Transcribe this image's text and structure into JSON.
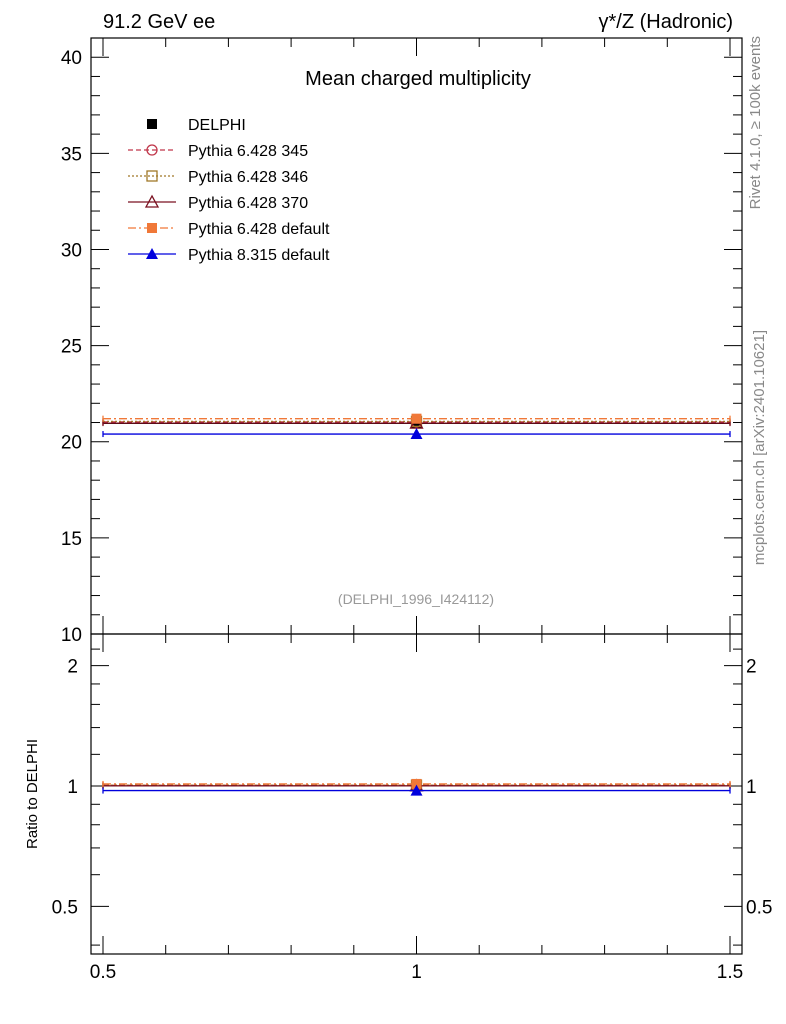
{
  "header": {
    "left": "91.2 GeV ee",
    "right": "γ*/Z (Hadronic)"
  },
  "side_text": {
    "rivet": "Rivet 4.1.0, ≥ 100k events",
    "mcplots": "mcplots.cern.ch [arXiv:2401.10621]"
  },
  "chart_data": {
    "type": "scatter",
    "title": "Mean charged multiplicity",
    "analysis_label": "(DELPHI_1996_I424112)",
    "xlim": [
      0.5,
      1.5
    ],
    "x_ticks": [
      "0.5",
      "1",
      "1.5"
    ],
    "main": {
      "ylim": [
        10,
        41
      ],
      "y_ticks": [
        "10",
        "15",
        "20",
        "25",
        "30",
        "35",
        "40"
      ]
    },
    "ratio": {
      "ylabel": "Ratio to DELPHI",
      "ylim": [
        0.38,
        2.4
      ],
      "y_ticks": [
        "0.5",
        "1",
        "2"
      ]
    },
    "series": [
      {
        "name": "DELPHI",
        "x": 1.0,
        "value": 20.95,
        "ratio": 1.0,
        "color": "#000000",
        "marker": "square-filled",
        "line": "none"
      },
      {
        "name": "Pythia 6.428 345",
        "x": 1.0,
        "value": 21.03,
        "ratio": 1.004,
        "color": "#c0364a",
        "marker": "circle-open",
        "line": "dashed"
      },
      {
        "name": "Pythia 6.428 346",
        "x": 1.0,
        "value": 21.06,
        "ratio": 1.005,
        "color": "#a07828",
        "marker": "square-open",
        "line": "dotted"
      },
      {
        "name": "Pythia 6.428 370",
        "x": 1.0,
        "value": 20.97,
        "ratio": 1.001,
        "color": "#7a1020",
        "marker": "triangle-open",
        "line": "solid"
      },
      {
        "name": "Pythia 6.428 default",
        "x": 1.0,
        "value": 21.2,
        "ratio": 1.012,
        "color": "#f07838",
        "marker": "square-filled",
        "line": "dashdot"
      },
      {
        "name": "Pythia 8.315 default",
        "x": 1.0,
        "value": 20.4,
        "ratio": 0.974,
        "color": "#0000dd",
        "marker": "triangle-filled",
        "line": "solid"
      }
    ]
  }
}
